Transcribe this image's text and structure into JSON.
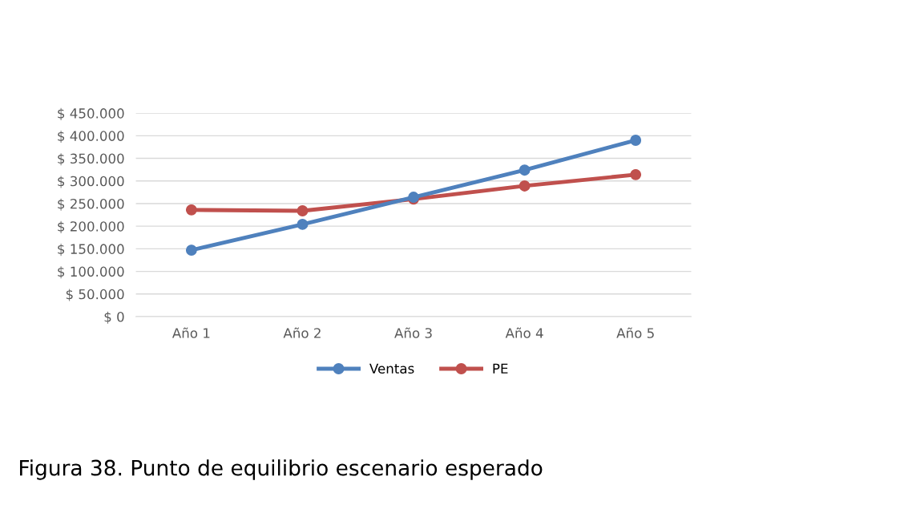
{
  "chart_data": {
    "type": "line",
    "categories": [
      "Año 1",
      "Año 2",
      "Año 3",
      "Año 4",
      "Año 5"
    ],
    "series": [
      {
        "name": "Ventas",
        "color": "#4f81bd",
        "values": [
          147000,
          204000,
          264000,
          324000,
          390000
        ]
      },
      {
        "name": "PE",
        "color": "#c0504d",
        "values": [
          236000,
          234000,
          260000,
          289000,
          314000
        ]
      }
    ],
    "ylim": [
      0,
      450000
    ],
    "yticks": [
      {
        "value": 0,
        "label": "$ 0"
      },
      {
        "value": 50000,
        "label": "$ 50.000"
      },
      {
        "value": 100000,
        "label": "$ 100.000"
      },
      {
        "value": 150000,
        "label": "$ 150.000"
      },
      {
        "value": 200000,
        "label": "$ 200.000"
      },
      {
        "value": 250000,
        "label": "$ 250.000"
      },
      {
        "value": 300000,
        "label": "$ 300.000"
      },
      {
        "value": 350000,
        "label": "$ 350.000"
      },
      {
        "value": 400000,
        "label": "$ 400.000"
      },
      {
        "value": 450000,
        "label": "$ 450.000"
      }
    ],
    "grid": "y",
    "legend": "bottom",
    "marker": "circle",
    "line_style": "solid",
    "annotations": [
      "Figura 38. Punto de equilibrio escenario esperado"
    ]
  }
}
